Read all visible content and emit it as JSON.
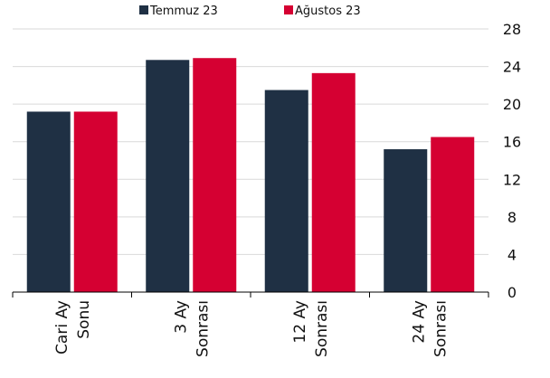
{
  "chart_data": {
    "type": "bar",
    "categories": [
      [
        "Cari Ay",
        "Sonu"
      ],
      [
        "3 Ay",
        "Sonrası"
      ],
      [
        "12 Ay",
        "Sonrası"
      ],
      [
        "24 Ay",
        "Sonrası"
      ]
    ],
    "series": [
      {
        "name": "Temmuz 23",
        "color": "#1f3044",
        "values": [
          19.2,
          24.7,
          21.5,
          15.2
        ]
      },
      {
        "name": "Ağustos 23",
        "color": "#d50032",
        "values": [
          19.2,
          24.9,
          23.3,
          16.5
        ]
      }
    ],
    "ylim": [
      0,
      28
    ],
    "yticks": [
      0,
      4,
      8,
      12,
      16,
      20,
      24,
      28
    ],
    "grid": true,
    "legend": "top"
  }
}
